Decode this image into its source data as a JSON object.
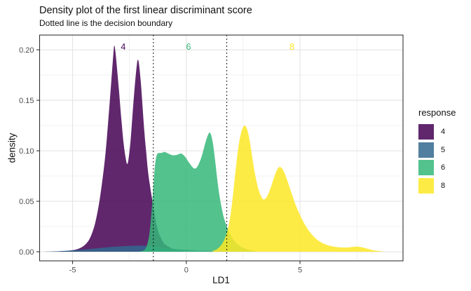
{
  "style": {
    "grid_major": "#E4E4E4",
    "grid_minor": "#F1F1F1",
    "panel_border": "#333333",
    "tick_color": "#333333",
    "tick_label_color": "#4D4D4D",
    "boundary_color": "#000000"
  },
  "legend": {
    "title": "response",
    "items": [
      {
        "label": "4",
        "color": "#440154"
      },
      {
        "label": "5",
        "color": "#31688E"
      },
      {
        "label": "6",
        "color": "#35B779"
      },
      {
        "label": "8",
        "color": "#FDE725"
      }
    ]
  },
  "chart_data": {
    "type": "area",
    "title": "Density plot of the first linear discriminant score",
    "subtitle": "Dotted line is the decision boundary",
    "xlabel": "LD1",
    "ylabel": "density",
    "xlim": [
      -6.45,
      9.53
    ],
    "ylim": [
      -0.009,
      0.2146
    ],
    "x_ticks": [
      -5,
      0,
      5
    ],
    "x_tick_labels": [
      "-5",
      "0",
      "5"
    ],
    "x_minor": [
      -2.5,
      2.5,
      7.5
    ],
    "y_ticks": [
      0,
      0.05,
      0.1,
      0.15,
      0.2
    ],
    "y_tick_labels": [
      "0.00",
      "0.05",
      "0.10",
      "0.15",
      "0.20"
    ],
    "y_minor": [
      0.025,
      0.075,
      0.125,
      0.175
    ],
    "grid": true,
    "legend_position": "right",
    "fill_opacity": 0.85,
    "decision_boundaries": [
      -1.45,
      1.78
    ],
    "series": [
      {
        "name": "4",
        "color": "#440154",
        "annotation": {
          "label": "4",
          "x": -2.77,
          "y": 0.203,
          "color": "#440154"
        },
        "points": [
          [
            -5.9,
            0.0002
          ],
          [
            -5.5,
            0.0005
          ],
          [
            -5.1,
            0.0012
          ],
          [
            -4.8,
            0.0025
          ],
          [
            -4.6,
            0.0045
          ],
          [
            -4.45,
            0.007
          ],
          [
            -4.3,
            0.011
          ],
          [
            -4.15,
            0.018
          ],
          [
            -4.0,
            0.029
          ],
          [
            -3.85,
            0.046
          ],
          [
            -3.7,
            0.069
          ],
          [
            -3.55,
            0.098
          ],
          [
            -3.42,
            0.133
          ],
          [
            -3.3,
            0.168
          ],
          [
            -3.22,
            0.192
          ],
          [
            -3.17,
            0.204
          ],
          [
            -3.12,
            0.199
          ],
          [
            -3.05,
            0.183
          ],
          [
            -2.95,
            0.157
          ],
          [
            -2.85,
            0.13
          ],
          [
            -2.75,
            0.106
          ],
          [
            -2.66,
            0.092
          ],
          [
            -2.6,
            0.087
          ],
          [
            -2.54,
            0.092
          ],
          [
            -2.45,
            0.11
          ],
          [
            -2.35,
            0.14
          ],
          [
            -2.25,
            0.168
          ],
          [
            -2.17,
            0.186
          ],
          [
            -2.13,
            0.19
          ],
          [
            -2.08,
            0.186
          ],
          [
            -2.0,
            0.168
          ],
          [
            -1.92,
            0.143
          ],
          [
            -1.84,
            0.118
          ],
          [
            -1.76,
            0.098
          ],
          [
            -1.68,
            0.079
          ],
          [
            -1.6,
            0.066
          ],
          [
            -1.5,
            0.052
          ],
          [
            -1.4,
            0.038
          ],
          [
            -1.3,
            0.026
          ],
          [
            -1.2,
            0.018
          ],
          [
            -1.1,
            0.013
          ],
          [
            -1.0,
            0.009
          ],
          [
            -0.85,
            0.006
          ],
          [
            -0.7,
            0.004
          ],
          [
            -0.5,
            0.002
          ],
          [
            -0.3,
            0.001
          ],
          [
            -0.1,
            0.0004
          ],
          [
            0.1,
            0.0001
          ]
        ]
      },
      {
        "name": "5",
        "color": "#31688E",
        "annotation": null,
        "points": [
          [
            -6.2,
            0.0002
          ],
          [
            -5.6,
            0.0006
          ],
          [
            -5.1,
            0.0012
          ],
          [
            -4.7,
            0.0019
          ],
          [
            -4.3,
            0.0027
          ],
          [
            -3.9,
            0.0035
          ],
          [
            -3.5,
            0.0043
          ],
          [
            -3.1,
            0.005
          ],
          [
            -2.7,
            0.0056
          ],
          [
            -2.35,
            0.0059
          ],
          [
            -2.0,
            0.006
          ],
          [
            -1.7,
            0.0057
          ],
          [
            -1.4,
            0.0051
          ],
          [
            -1.1,
            0.0043
          ],
          [
            -0.8,
            0.0035
          ],
          [
            -0.5,
            0.0028
          ],
          [
            -0.2,
            0.0022
          ],
          [
            0.2,
            0.0016
          ],
          [
            0.6,
            0.0011
          ],
          [
            1.0,
            0.0008
          ],
          [
            1.5,
            0.0005
          ],
          [
            2.0,
            0.0003
          ],
          [
            2.6,
            0.0002
          ],
          [
            3.2,
            0.0001
          ]
        ]
      },
      {
        "name": "6",
        "color": "#35B779",
        "annotation": {
          "label": "6",
          "x": 0.1,
          "y": 0.203,
          "color": "#35B779"
        },
        "points": [
          [
            -2.05,
            0.0003
          ],
          [
            -1.9,
            0.001
          ],
          [
            -1.8,
            0.003
          ],
          [
            -1.72,
            0.007
          ],
          [
            -1.64,
            0.015
          ],
          [
            -1.57,
            0.028
          ],
          [
            -1.5,
            0.048
          ],
          [
            -1.44,
            0.068
          ],
          [
            -1.38,
            0.085
          ],
          [
            -1.32,
            0.094
          ],
          [
            -1.25,
            0.0975
          ],
          [
            -1.15,
            0.0978
          ],
          [
            -1.05,
            0.0982
          ],
          [
            -0.97,
            0.0988
          ],
          [
            -0.88,
            0.0983
          ],
          [
            -0.75,
            0.0968
          ],
          [
            -0.62,
            0.0957
          ],
          [
            -0.5,
            0.0956
          ],
          [
            -0.38,
            0.0962
          ],
          [
            -0.27,
            0.0972
          ],
          [
            -0.18,
            0.0968
          ],
          [
            -0.05,
            0.094
          ],
          [
            0.1,
            0.089
          ],
          [
            0.22,
            0.0853
          ],
          [
            0.34,
            0.0825
          ],
          [
            0.45,
            0.0832
          ],
          [
            0.55,
            0.087
          ],
          [
            0.67,
            0.094
          ],
          [
            0.78,
            0.103
          ],
          [
            0.88,
            0.111
          ],
          [
            0.97,
            0.1165
          ],
          [
            1.03,
            0.118
          ],
          [
            1.1,
            0.115
          ],
          [
            1.18,
            0.106
          ],
          [
            1.27,
            0.09
          ],
          [
            1.36,
            0.072
          ],
          [
            1.45,
            0.057
          ],
          [
            1.55,
            0.044
          ],
          [
            1.65,
            0.034
          ],
          [
            1.76,
            0.0265
          ],
          [
            1.88,
            0.02
          ],
          [
            2.0,
            0.0148
          ],
          [
            2.15,
            0.01
          ],
          [
            2.3,
            0.0068
          ],
          [
            2.5,
            0.004
          ],
          [
            2.7,
            0.0022
          ],
          [
            2.9,
            0.0011
          ],
          [
            3.1,
            0.0004
          ]
        ]
      },
      {
        "name": "8",
        "color": "#FDE725",
        "annotation": {
          "label": "8",
          "x": 4.65,
          "y": 0.203,
          "color": "#FDE725"
        },
        "points": [
          [
            1.15,
            0.0008
          ],
          [
            1.3,
            0.002
          ],
          [
            1.45,
            0.0045
          ],
          [
            1.58,
            0.008
          ],
          [
            1.7,
            0.0135
          ],
          [
            1.8,
            0.02
          ],
          [
            1.9,
            0.03
          ],
          [
            2.0,
            0.046
          ],
          [
            2.1,
            0.066
          ],
          [
            2.2,
            0.087
          ],
          [
            2.3,
            0.105
          ],
          [
            2.4,
            0.117
          ],
          [
            2.5,
            0.1235
          ],
          [
            2.58,
            0.1248
          ],
          [
            2.68,
            0.121
          ],
          [
            2.78,
            0.111
          ],
          [
            2.88,
            0.097
          ],
          [
            2.98,
            0.082
          ],
          [
            3.1,
            0.0685
          ],
          [
            3.2,
            0.06
          ],
          [
            3.3,
            0.0545
          ],
          [
            3.38,
            0.052
          ],
          [
            3.48,
            0.0525
          ],
          [
            3.6,
            0.057
          ],
          [
            3.72,
            0.064
          ],
          [
            3.85,
            0.073
          ],
          [
            3.97,
            0.08
          ],
          [
            4.08,
            0.0838
          ],
          [
            4.18,
            0.0832
          ],
          [
            4.3,
            0.079
          ],
          [
            4.45,
            0.07
          ],
          [
            4.6,
            0.06
          ],
          [
            4.75,
            0.05
          ],
          [
            4.9,
            0.0415
          ],
          [
            5.05,
            0.034
          ],
          [
            5.2,
            0.0275
          ],
          [
            5.4,
            0.0205
          ],
          [
            5.6,
            0.0152
          ],
          [
            5.8,
            0.0112
          ],
          [
            6.0,
            0.0085
          ],
          [
            6.25,
            0.0063
          ],
          [
            6.5,
            0.005
          ],
          [
            6.75,
            0.0043
          ],
          [
            7.0,
            0.0042
          ],
          [
            7.2,
            0.0045
          ],
          [
            7.45,
            0.005
          ],
          [
            7.6,
            0.0049
          ],
          [
            7.8,
            0.004
          ],
          [
            8.0,
            0.0028
          ],
          [
            8.2,
            0.0016
          ],
          [
            8.45,
            0.0007
          ],
          [
            8.7,
            0.0002
          ]
        ]
      }
    ]
  }
}
